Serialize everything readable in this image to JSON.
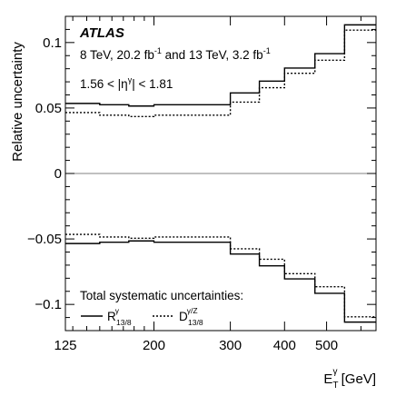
{
  "chart_data": {
    "type": "line",
    "experiment": "ATLAS",
    "luminosity_parts": {
      "a": "8 TeV, 20.2 fb",
      "a_sup": "-1",
      "b": " and 13 TeV, 3.2 fb",
      "b_sup": "-1"
    },
    "selection_parts": {
      "a": "1.56 < |η",
      "sup": "γ",
      "b": "| < 1.81"
    },
    "ylabel": "Relative uncertainty",
    "xlabel_parts": {
      "main": "E",
      "sub": "T",
      "sup": "γ",
      "unit": " [GeV]"
    },
    "x_scale": "log",
    "xlim": [
      125,
      650
    ],
    "ylim": [
      -0.12,
      0.12
    ],
    "x_ticks": [
      {
        "value": 125,
        "label": "125"
      },
      {
        "value": 200,
        "label": "200"
      },
      {
        "value": 300,
        "label": "300"
      },
      {
        "value": 400,
        "label": "400"
      },
      {
        "value": 500,
        "label": "500"
      }
    ],
    "y_ticks": [
      {
        "value": 0.1,
        "label": "0.1"
      },
      {
        "value": 0.05,
        "label": "0.05"
      },
      {
        "value": 0,
        "label": "0"
      },
      {
        "value": -0.05,
        "label": "−0.05"
      },
      {
        "value": -0.1,
        "label": "−0.1"
      }
    ],
    "bin_edges": [
      125,
      150,
      175,
      200,
      250,
      300,
      350,
      400,
      470,
      550,
      650
    ],
    "legend": {
      "title": "Total systematic uncertainties:",
      "placement": "bottom-left",
      "entries": [
        {
          "series": "R",
          "main": "R",
          "sub": "13/8",
          "sup": "γ",
          "style": "solid"
        },
        {
          "series": "D",
          "main": "D",
          "sub": "13/8",
          "sup": "γ/Z",
          "style": "dotted"
        }
      ]
    },
    "series": [
      {
        "id": "R_up",
        "style": "solid",
        "values": [
          0.0535,
          0.0525,
          0.0515,
          0.0525,
          0.0525,
          0.0615,
          0.0705,
          0.0805,
          0.0915,
          0.1135
        ]
      },
      {
        "id": "R_down",
        "style": "solid",
        "values": [
          -0.0535,
          -0.0525,
          -0.0515,
          -0.0525,
          -0.0525,
          -0.0615,
          -0.0705,
          -0.0805,
          -0.0915,
          -0.1135
        ]
      },
      {
        "id": "D_up",
        "style": "dotted",
        "values": [
          0.0465,
          0.0445,
          0.0435,
          0.0445,
          0.0445,
          0.0545,
          0.0655,
          0.0765,
          0.0865,
          0.1095
        ]
      },
      {
        "id": "D_down",
        "style": "dotted",
        "values": [
          -0.0465,
          -0.0485,
          -0.0495,
          -0.0485,
          -0.0485,
          -0.0575,
          -0.0655,
          -0.0765,
          -0.0865,
          -0.1095
        ]
      }
    ],
    "zero_line": true,
    "grid": false
  }
}
